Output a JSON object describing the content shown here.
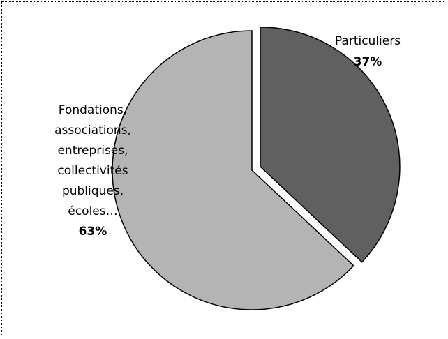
{
  "chart_data": {
    "type": "pie",
    "slices": [
      {
        "label_lines": [
          "Particuliers"
        ],
        "percent_label": "37%",
        "value": 37,
        "color": "#606060",
        "exploded": true
      },
      {
        "label_lines": [
          "Fondations,",
          "associations,",
          "entreprises,",
          "collectivités",
          "publiques,",
          "écoles…"
        ],
        "percent_label": "63%",
        "value": 63,
        "color": "#b4b4b4",
        "exploded": false
      }
    ],
    "stroke_color": "#000000",
    "background": "#ffffff"
  }
}
